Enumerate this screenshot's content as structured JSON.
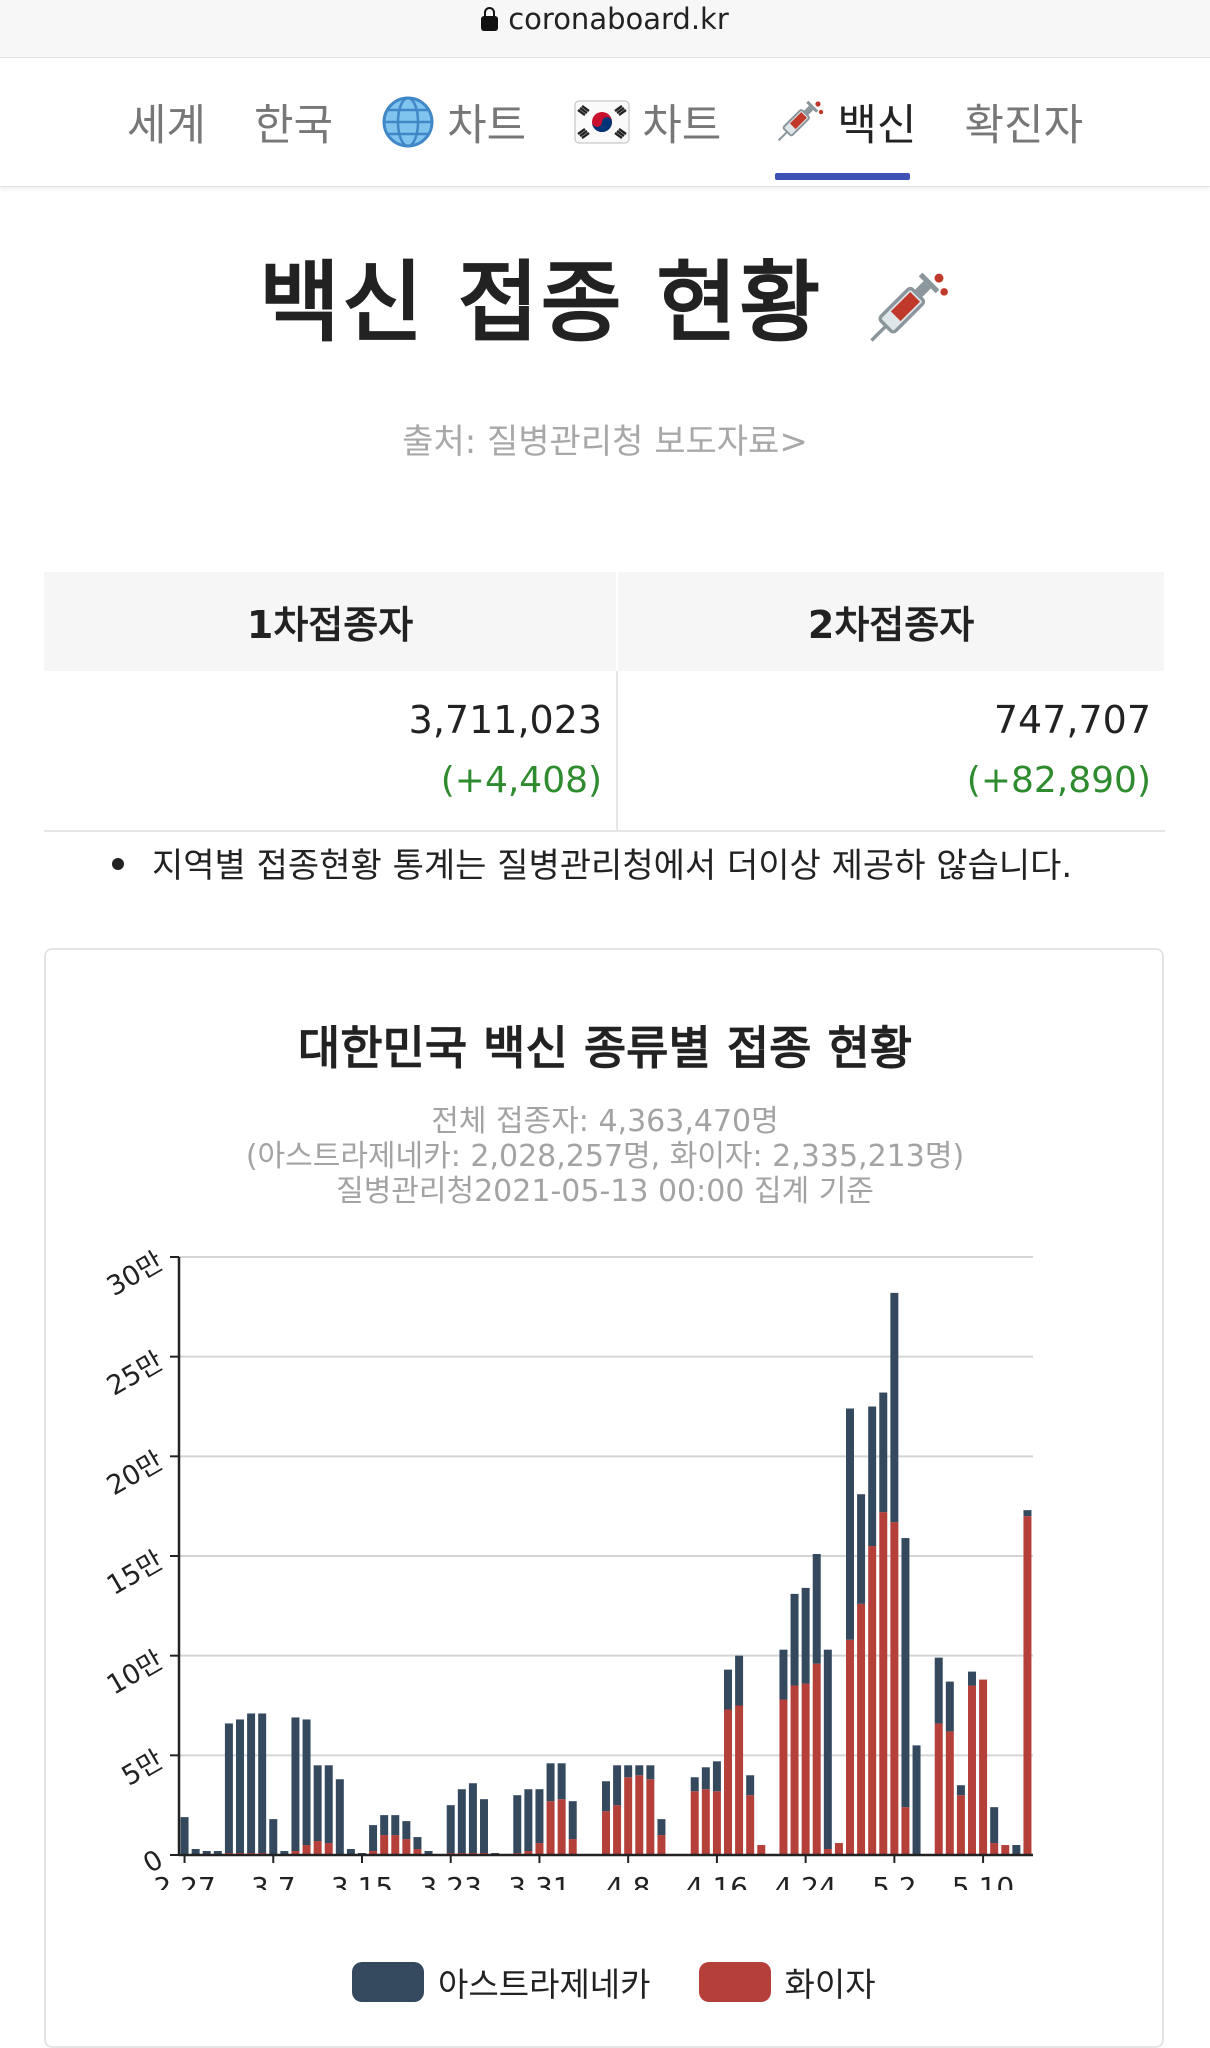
{
  "browser": {
    "url": "coronaboard.kr"
  },
  "nav": {
    "tabs": [
      {
        "label": "세계",
        "icon": "",
        "active": false
      },
      {
        "label": "한국",
        "icon": "",
        "active": false
      },
      {
        "label": "차트",
        "icon": "globe-icon",
        "active": false
      },
      {
        "label": "차트",
        "icon": "korea-flag-icon",
        "active": false
      },
      {
        "label": "백신",
        "icon": "syringe-icon",
        "active": true
      },
      {
        "label": "확진자",
        "icon": "",
        "active": false
      }
    ],
    "accent": "#3f51b5"
  },
  "page": {
    "title": "백신 접종 현황",
    "title_icon": "syringe-icon",
    "source": "출처: 질병관리청 보도자료>"
  },
  "stats": {
    "headers": [
      "1차접종자",
      "2차접종자"
    ],
    "values": [
      "3,711,023",
      "747,707"
    ],
    "deltas": [
      "(+4,408)",
      "(+82,890)"
    ],
    "delta_color": "#2e8b2e"
  },
  "note": "지역별 접종현황 통계는 질병관리청에서 더이상 제공하 않습니다.",
  "chart_data": {
    "type": "bar",
    "stacked": true,
    "title": "대한민국 백신 종류별 접종 현황",
    "subtitle_lines": [
      "전체 접종자: 4,363,470명",
      "(아스트라제네카: 2,028,257명, 화이자: 2,335,213명)",
      "질병관리청2021-05-13 00:00 집계 기준"
    ],
    "y_ticks": [
      "0",
      "5만",
      "10만",
      "15만",
      "20만",
      "25만",
      "30만"
    ],
    "ylim": [
      0,
      300000
    ],
    "x_tick_labels": [
      "2.27",
      "3.7",
      "3.15",
      "3.23",
      "3.31",
      "4.8",
      "4.16",
      "4.24",
      "5.2",
      "5.10"
    ],
    "x_tick_index": [
      0,
      8,
      16,
      24,
      32,
      40,
      48,
      56,
      64,
      72
    ],
    "grid": true,
    "legend_position": "bottom",
    "series": [
      {
        "name": "아스트라제네카",
        "color": "#34495e",
        "values": [
          19000,
          3000,
          2000,
          2000,
          65000,
          67000,
          70000,
          70000,
          18000,
          2000,
          67000,
          63000,
          38000,
          39000,
          38000,
          3000,
          1000,
          13000,
          10000,
          10000,
          9000,
          6000,
          2000,
          0,
          24000,
          32000,
          35000,
          27000,
          1000,
          0,
          29000,
          31000,
          27000,
          19000,
          18000,
          19000,
          0,
          0,
          15000,
          20000,
          6000,
          5000,
          7000,
          8000,
          0,
          0,
          7000,
          11000,
          15000,
          20000,
          25000,
          10000,
          0,
          0,
          25000,
          46000,
          48000,
          55000,
          100000,
          0,
          116000,
          55000,
          70000,
          60000,
          115000,
          135000,
          55000,
          0,
          33000,
          25000,
          5000,
          7000,
          0,
          18000,
          0,
          5000,
          3000
        ]
      },
      {
        "name": "화이자",
        "color": "#b5403a",
        "values": [
          0,
          0,
          0,
          0,
          1000,
          1000,
          1000,
          1000,
          0,
          0,
          2000,
          5000,
          7000,
          6000,
          0,
          0,
          0,
          2000,
          10000,
          10000,
          8000,
          3000,
          0,
          0,
          1000,
          1000,
          1000,
          1000,
          0,
          0,
          1000,
          2000,
          6000,
          27000,
          28000,
          8000,
          0,
          0,
          22000,
          25000,
          39000,
          40000,
          38000,
          10000,
          0,
          0,
          32000,
          33000,
          32000,
          73000,
          75000,
          30000,
          5000,
          0,
          78000,
          85000,
          86000,
          96000,
          3000,
          6000,
          108000,
          126000,
          155000,
          172000,
          167000,
          24000,
          0,
          0,
          66000,
          62000,
          30000,
          85000,
          88000,
          6000,
          5000,
          0,
          170000
        ]
      }
    ]
  }
}
